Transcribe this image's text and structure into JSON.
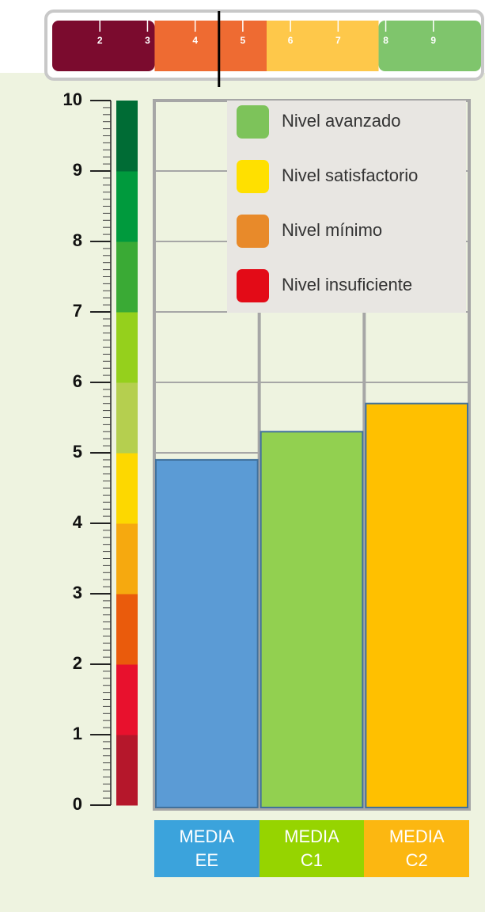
{
  "chart_data": {
    "type": "bar",
    "categories": [
      "MEDIA EE",
      "MEDIA C1",
      "MEDIA C2"
    ],
    "values": [
      4.9,
      5.3,
      5.7
    ],
    "colors": [
      "#5b9bd5",
      "#92d050",
      "#ffc000"
    ],
    "label_colors": [
      "#3ba3dc",
      "#96d400",
      "#fcb711"
    ],
    "ylim": [
      0,
      10
    ],
    "yticks": [
      0,
      1,
      2,
      3,
      4,
      5,
      6,
      7,
      8,
      9,
      10
    ],
    "grid": true,
    "scale_colors": [
      "#b5172b",
      "#e8112d",
      "#ea5b0c",
      "#f6a90f",
      "#fdd800",
      "#b5cf4f",
      "#95d01c",
      "#3aaa35",
      "#009a3d",
      "#006c35"
    ],
    "legend": {
      "position": "upper right",
      "entries": [
        {
          "name": "Nivel avanzado",
          "color": "#7dc35a"
        },
        {
          "name": "Nivel satisfactorio",
          "color": "#ffe000"
        },
        {
          "name": "Nivel mínimo",
          "color": "#e88a2a"
        },
        {
          "name": "Nivel insuficiente",
          "color": "#e30b17"
        }
      ]
    }
  },
  "score_scale": {
    "xlim": [
      1,
      10
    ],
    "xticks": [
      2,
      3,
      4,
      5,
      6,
      7,
      8,
      9
    ],
    "segments": [
      {
        "from": 1,
        "to": 3.15,
        "color": "#7b0b2e"
      },
      {
        "from": 3.15,
        "to": 5.5,
        "color": "#ee6b32"
      },
      {
        "from": 5.5,
        "to": 7.85,
        "color": "#fec84a"
      },
      {
        "from": 7.85,
        "to": 10,
        "color": "#7fc56c"
      }
    ],
    "marker": 4.5
  }
}
